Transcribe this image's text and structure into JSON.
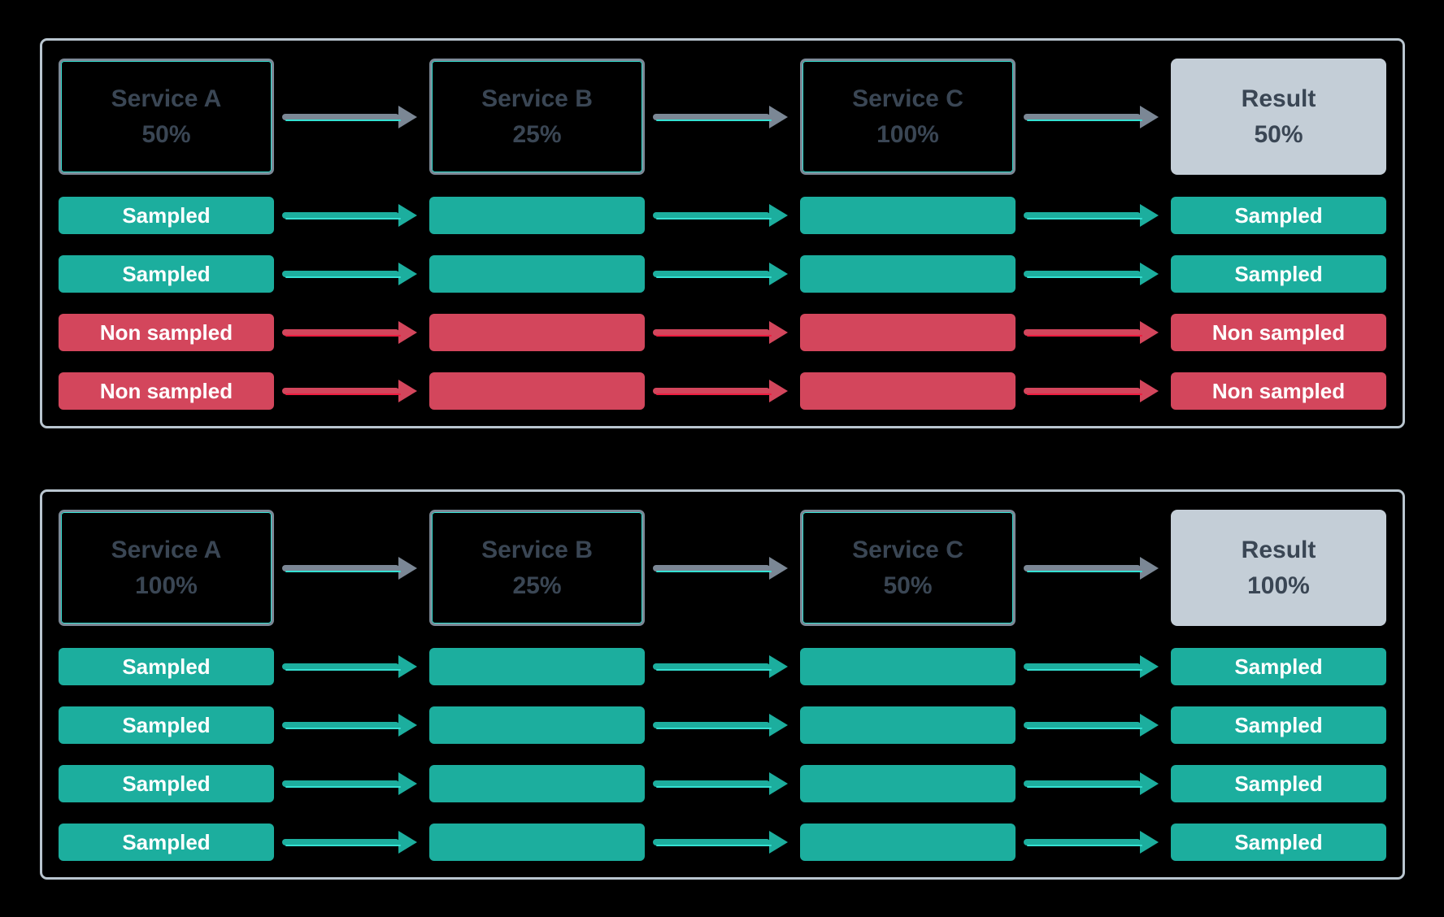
{
  "colors": {
    "background": "#000000",
    "panel-border": "#b9c5cf",
    "service-border": "#7c8896",
    "service-text": "#3a4654",
    "result-bg": "#c4ced7",
    "sampled": "#1cae9e",
    "non-sampled": "#d3465c",
    "arrow-gray": "#7b8795",
    "accent-cyan": "#35e0d2",
    "accent-red": "#ee1d40"
  },
  "panels": [
    {
      "name": "scenario-1",
      "services": [
        {
          "label": "Service A",
          "value": "50%"
        },
        {
          "label": "Service B",
          "value": "25%"
        },
        {
          "label": "Service C",
          "value": "100%"
        },
        {
          "label": "Result",
          "value": "50%"
        }
      ],
      "rows": [
        {
          "label": "Sampled",
          "status": "sampled"
        },
        {
          "label": "Sampled",
          "status": "sampled"
        },
        {
          "label": "Non sampled",
          "status": "non-sampled"
        },
        {
          "label": "Non sampled",
          "status": "non-sampled"
        }
      ]
    },
    {
      "name": "scenario-2",
      "services": [
        {
          "label": "Service A",
          "value": "100%"
        },
        {
          "label": "Service B",
          "value": "25%"
        },
        {
          "label": "Service C",
          "value": "50%"
        },
        {
          "label": "Result",
          "value": "100%"
        }
      ],
      "rows": [
        {
          "label": "Sampled",
          "status": "sampled"
        },
        {
          "label": "Sampled",
          "status": "sampled"
        },
        {
          "label": "Sampled",
          "status": "sampled"
        },
        {
          "label": "Sampled",
          "status": "sampled"
        }
      ]
    }
  ]
}
